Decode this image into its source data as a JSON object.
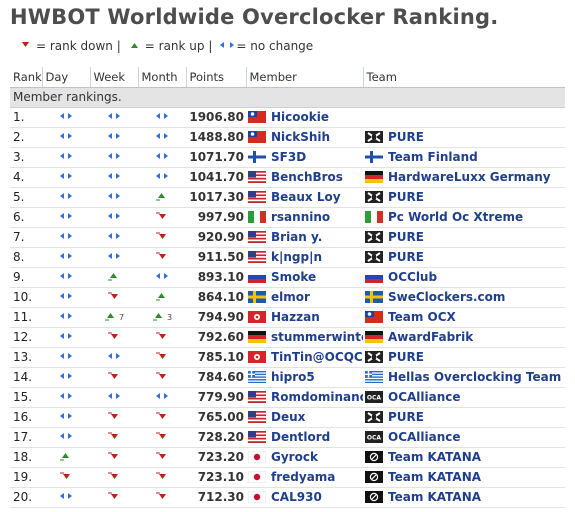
{
  "page": {
    "title": "HWBOT Worldwide Overclocker Ranking."
  },
  "legend": {
    "down": "= rank down |",
    "up": "= rank up |",
    "same": "= no change"
  },
  "table": {
    "headers": [
      "Rank",
      "Day",
      "Week",
      "Month",
      "Points",
      "Member",
      "Team"
    ],
    "section": "Member rankings.",
    "rows": [
      {
        "rank": "1.",
        "day": "same",
        "week": "same",
        "month": "same",
        "points": "1906.80",
        "flag": "taiwan",
        "member": "Hicookie",
        "team_flag": "",
        "team": ""
      },
      {
        "rank": "2.",
        "day": "same",
        "week": "same",
        "month": "same",
        "points": "1488.80",
        "flag": "taiwan",
        "member": "NickShih",
        "team_flag": "pure",
        "team": "PURE"
      },
      {
        "rank": "3.",
        "day": "same",
        "week": "same",
        "month": "same",
        "points": "1071.70",
        "flag": "finland",
        "member": "SF3D",
        "team_flag": "finland",
        "team": "Team Finland"
      },
      {
        "rank": "4.",
        "day": "same",
        "week": "same",
        "month": "same",
        "points": "1041.70",
        "flag": "usa",
        "member": "BenchBros",
        "team_flag": "germany",
        "team": "HardwareLuxx Germany"
      },
      {
        "rank": "5.",
        "day": "same",
        "week": "same",
        "month": "up",
        "points": "1017.30",
        "flag": "usa",
        "member": "Beaux Loy",
        "team_flag": "pure",
        "team": "PURE"
      },
      {
        "rank": "6.",
        "day": "same",
        "week": "same",
        "month": "down",
        "points": "997.90",
        "flag": "italy",
        "member": "rsannino",
        "team_flag": "italy",
        "team": "Pc World Oc Xtreme"
      },
      {
        "rank": "7.",
        "day": "same",
        "week": "same",
        "month": "down",
        "points": "920.90",
        "flag": "usa",
        "member": "Brian y.",
        "team_flag": "pure",
        "team": "PURE"
      },
      {
        "rank": "8.",
        "day": "same",
        "week": "same",
        "month": "down",
        "points": "911.50",
        "flag": "usa",
        "member": "k|ngp|n",
        "team_flag": "pure",
        "team": "PURE"
      },
      {
        "rank": "9.",
        "day": "same",
        "week": "up",
        "month": "same",
        "points": "893.10",
        "flag": "russia",
        "member": "Smoke",
        "team_flag": "russia",
        "team": "OCClub"
      },
      {
        "rank": "10.",
        "day": "same",
        "week": "down",
        "month": "up",
        "points": "864.10",
        "flag": "sweden",
        "member": "elmor",
        "team_flag": "sweden",
        "team": "SweClockers.com"
      },
      {
        "rank": "11.",
        "day": "same",
        "week": "up",
        "week_n": "7",
        "month": "up",
        "month_n": "3",
        "points": "794.90",
        "flag": "hongkong",
        "member": "Hazzan",
        "team_flag": "taiwan",
        "team": "Team OCX"
      },
      {
        "rank": "12.",
        "day": "same",
        "week": "down",
        "month": "down",
        "points": "792.60",
        "flag": "germany",
        "member": "stummerwinter",
        "team_flag": "germany",
        "team": "AwardFabrik"
      },
      {
        "rank": "13.",
        "day": "same",
        "week": "same",
        "month": "down",
        "points": "785.10",
        "flag": "hongkong",
        "member": "TinTin@OCQC",
        "team_flag": "pure",
        "team": "PURE"
      },
      {
        "rank": "14.",
        "day": "same",
        "week": "down",
        "month": "down",
        "points": "784.60",
        "flag": "greece",
        "member": "hipro5",
        "team_flag": "greece",
        "team": "Hellas Overclocking Team"
      },
      {
        "rank": "15.",
        "day": "same",
        "week": "same",
        "month": "same",
        "points": "779.90",
        "flag": "usa",
        "member": "Romdominance",
        "team_flag": "oca",
        "team": "OCAlliance"
      },
      {
        "rank": "16.",
        "day": "same",
        "week": "down",
        "month": "down",
        "points": "765.00",
        "flag": "usa",
        "member": "Deux",
        "team_flag": "pure",
        "team": "PURE"
      },
      {
        "rank": "17.",
        "day": "same",
        "week": "down",
        "month": "down",
        "points": "728.20",
        "flag": "usa",
        "member": "Dentlord",
        "team_flag": "oca",
        "team": "OCAlliance"
      },
      {
        "rank": "18.",
        "day": "up",
        "week": "down",
        "month": "down",
        "points": "723.20",
        "flag": "japan",
        "member": "Gyrock",
        "team_flag": "katana",
        "team": "Team KATANA"
      },
      {
        "rank": "19.",
        "day": "down",
        "week": "down",
        "month": "down",
        "points": "723.10",
        "flag": "japan",
        "member": "fredyama",
        "team_flag": "katana",
        "team": "Team KATANA"
      },
      {
        "rank": "20.",
        "day": "same",
        "week": "down",
        "month": "down",
        "points": "712.30",
        "flag": "japan",
        "member": "CAL930",
        "team_flag": "katana",
        "team": "Team KATANA"
      }
    ]
  },
  "colors": {
    "name_link": "#1f3f8c",
    "arrow_same": "#2f6fd8",
    "arrow_up": "#2e8b2e",
    "arrow_down": "#c0201c",
    "section_bg": "#e4e4e4"
  },
  "icons": {
    "same": "blue-left-right-arrows-icon",
    "up": "green-up-arrow-icon",
    "down": "red-down-arrow-icon",
    "pure": "pure-team-logo-icon",
    "oca": "ocalliance-team-logo-icon",
    "katana": "katana-team-logo-icon"
  }
}
